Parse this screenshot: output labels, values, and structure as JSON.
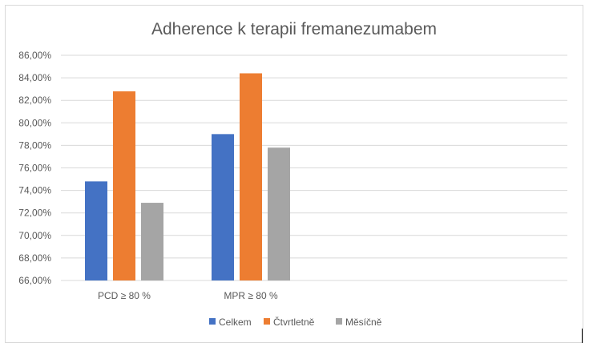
{
  "chart_data": {
    "type": "bar",
    "title": "Adherence k terapii fremanezumabem",
    "categories": [
      "PCD ≥ 80 %",
      "MPR ≥ 80 %"
    ],
    "series": [
      {
        "name": "Celkem",
        "values": [
          74.8,
          79.0
        ]
      },
      {
        "name": "Čtvrtletně",
        "values": [
          82.8,
          84.4
        ]
      },
      {
        "name": "Měsíčně",
        "values": [
          72.9,
          77.8
        ]
      }
    ],
    "ylim": [
      66,
      86
    ],
    "y_ticks": [
      66,
      68,
      70,
      72,
      74,
      76,
      78,
      80,
      82,
      84,
      86
    ],
    "y_tick_labels": [
      "66,00%",
      "68,00%",
      "70,00%",
      "72,00%",
      "74,00%",
      "76,00%",
      "78,00%",
      "80,00%",
      "82,00%",
      "84,00%",
      "86,00%"
    ],
    "grid": true,
    "legend": "bottom",
    "colors": [
      "#4472c4",
      "#ed7d31",
      "#a5a5a5"
    ]
  }
}
